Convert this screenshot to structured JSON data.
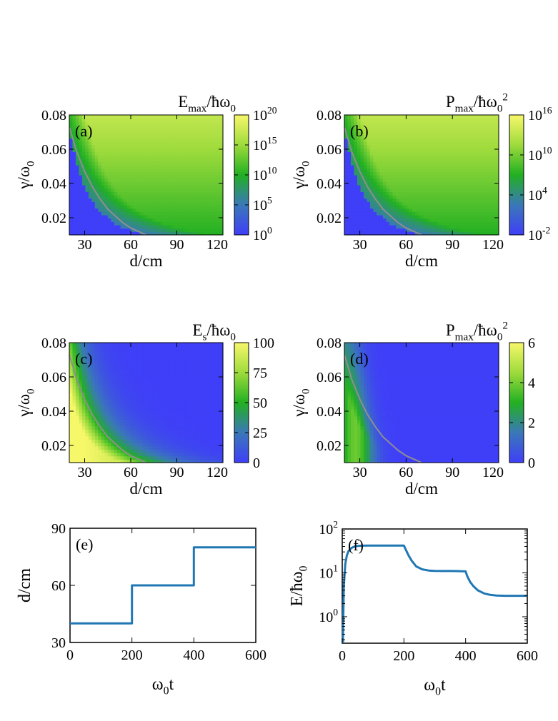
{
  "figure": {
    "panels": [
      {
        "id": "a",
        "label": "(a)"
      },
      {
        "id": "b",
        "label": "(b)"
      },
      {
        "id": "c",
        "label": "(c)"
      },
      {
        "id": "d",
        "label": "(d)"
      },
      {
        "id": "e",
        "label": "(e)"
      },
      {
        "id": "f",
        "label": "(f)"
      }
    ]
  },
  "colors": {
    "cmap_low": "#3f3ff8",
    "cmap_mid": "#22b022",
    "cmap_high": "#f7f76a",
    "contour": "#8f8f8f",
    "line": "#1f77b4",
    "axis": "#000000"
  },
  "chart_data": [
    {
      "id": "a",
      "type": "heatmap",
      "label": "(a)",
      "xlabel": "d/cm",
      "ylabel": "γ/ω0",
      "colorbar_title": "Emax/ħω0",
      "xlim": [
        20,
        120
      ],
      "ylim": [
        0.01,
        0.08
      ],
      "xticks": [
        30,
        60,
        90,
        120
      ],
      "yticks": [
        0.02,
        0.04,
        0.06,
        0.08
      ],
      "xticklabels": [
        "30",
        "60",
        "90",
        "120"
      ],
      "yticklabels": [
        "0.02",
        "0.04",
        "0.06",
        "0.08"
      ],
      "colorbar": {
        "scale": "log",
        "range": [
          0,
          20
        ],
        "ticks": [
          0,
          5,
          10,
          15,
          20
        ],
        "ticklabels": [
          "10^0",
          "10^5",
          "10^10",
          "10^15",
          "10^20"
        ]
      },
      "contour": {
        "x": [
          20,
          25,
          30,
          35,
          40,
          45,
          50,
          55,
          60,
          65,
          70
        ],
        "y": [
          0.073,
          0.058,
          0.047,
          0.038,
          0.031,
          0.025,
          0.021,
          0.017,
          0.014,
          0.012,
          0.01
        ]
      },
      "kind": "grow"
    },
    {
      "id": "b",
      "type": "heatmap",
      "label": "(b)",
      "xlabel": "d/cm",
      "ylabel": "γ/ω0",
      "colorbar_title": "Pmax/ħω0^2",
      "xlim": [
        20,
        120
      ],
      "ylim": [
        0.01,
        0.08
      ],
      "xticks": [
        30,
        60,
        90,
        120
      ],
      "yticks": [
        0.02,
        0.04,
        0.06,
        0.08
      ],
      "xticklabels": [
        "30",
        "60",
        "90",
        "120"
      ],
      "yticklabels": [
        "0.02",
        "0.04",
        "0.06",
        "0.08"
      ],
      "colorbar": {
        "scale": "log",
        "range": [
          -2,
          16
        ],
        "ticks": [
          -2,
          4,
          10,
          16
        ],
        "ticklabels": [
          "10^-2",
          "10^4",
          "10^10",
          "10^16"
        ]
      },
      "contour": {
        "x": [
          20,
          25,
          30,
          35,
          40,
          45,
          50,
          55,
          60,
          65,
          70
        ],
        "y": [
          0.073,
          0.058,
          0.047,
          0.038,
          0.031,
          0.025,
          0.021,
          0.017,
          0.014,
          0.012,
          0.01
        ]
      },
      "kind": "grow"
    },
    {
      "id": "c",
      "type": "heatmap",
      "label": "(c)",
      "xlabel": "d/cm",
      "ylabel": "γ/ω0",
      "colorbar_title": "Es/ħω0",
      "xlim": [
        20,
        120
      ],
      "ylim": [
        0.01,
        0.08
      ],
      "xticks": [
        30,
        60,
        90,
        120
      ],
      "yticks": [
        0.02,
        0.04,
        0.06,
        0.08
      ],
      "xticklabels": [
        "30",
        "60",
        "90",
        "120"
      ],
      "yticklabels": [
        "0.02",
        "0.04",
        "0.06",
        "0.08"
      ],
      "colorbar": {
        "scale": "linear",
        "range": [
          0,
          100
        ],
        "ticks": [
          0,
          25,
          50,
          75,
          100
        ],
        "ticklabels": [
          "0",
          "25",
          "50",
          "75",
          "100"
        ]
      },
      "contour": {
        "x": [
          20,
          25,
          30,
          35,
          40,
          45,
          50,
          55,
          60,
          65,
          70
        ],
        "y": [
          0.073,
          0.058,
          0.047,
          0.038,
          0.031,
          0.025,
          0.021,
          0.017,
          0.014,
          0.012,
          0.01
        ]
      },
      "kind": "steady"
    },
    {
      "id": "d",
      "type": "heatmap",
      "label": "(d)",
      "xlabel": "d/cm",
      "ylabel": "γ/ω0",
      "colorbar_title": "Pmax/ħω0^2",
      "xlim": [
        20,
        120
      ],
      "ylim": [
        0.01,
        0.08
      ],
      "xticks": [
        30,
        60,
        90,
        120
      ],
      "yticks": [
        0.02,
        0.04,
        0.06,
        0.08
      ],
      "xticklabels": [
        "30",
        "60",
        "90",
        "120"
      ],
      "yticklabels": [
        "0.02",
        "0.04",
        "0.06",
        "0.08"
      ],
      "colorbar": {
        "scale": "linear",
        "range": [
          0,
          6
        ],
        "ticks": [
          0,
          2,
          4,
          6
        ],
        "ticklabels": [
          "0",
          "2",
          "4",
          "6"
        ]
      },
      "contour": {
        "x": [
          20,
          25,
          30,
          35,
          40,
          45,
          50,
          55,
          60,
          65,
          70
        ],
        "y": [
          0.073,
          0.058,
          0.047,
          0.038,
          0.031,
          0.025,
          0.021,
          0.017,
          0.014,
          0.012,
          0.01
        ]
      },
      "kind": "peak"
    },
    {
      "id": "e",
      "type": "line",
      "label": "(e)",
      "xlabel": "ω0t",
      "ylabel": "d/cm",
      "xlim": [
        0,
        600
      ],
      "ylim": [
        30,
        90
      ],
      "xticks": [
        0,
        200,
        400,
        600
      ],
      "yticks": [
        30,
        60,
        90
      ],
      "xticklabels": [
        "0",
        "200",
        "400",
        "600"
      ],
      "yticklabels": [
        "30",
        "60",
        "90"
      ],
      "series": [
        {
          "x": [
            0,
            200,
            200,
            400,
            400,
            600
          ],
          "y": [
            40,
            40,
            60,
            60,
            80,
            80
          ]
        }
      ]
    },
    {
      "id": "f",
      "type": "line",
      "label": "(f)",
      "xlabel": "ω0t",
      "ylabel": "E/ħω0",
      "yscale": "log",
      "xlim": [
        0,
        600
      ],
      "ylim": [
        0.25,
        100
      ],
      "xticks": [
        0,
        200,
        400,
        600
      ],
      "yticks": [
        1,
        10,
        100
      ],
      "xticklabels": [
        "0",
        "200",
        "400",
        "600"
      ],
      "yticklabels": [
        "10^0",
        "10^1",
        "10^2"
      ],
      "series": [
        {
          "x": [
            2,
            5,
            10,
            15,
            20,
            30,
            40,
            50,
            60,
            80,
            100,
            130,
            160,
            200,
            205,
            215,
            225,
            240,
            260,
            280,
            300,
            330,
            360,
            400,
            405,
            415,
            425,
            440,
            460,
            480,
            500,
            530,
            560,
            600
          ],
          "y": [
            0.25,
            5,
            16,
            25,
            31,
            37,
            40,
            41,
            41.5,
            42,
            42,
            42,
            42,
            42,
            35,
            25,
            19,
            14,
            12,
            11.3,
            11.1,
            11,
            11,
            10.8,
            8.5,
            6.2,
            5,
            4,
            3.4,
            3.15,
            3.05,
            3,
            3,
            3
          ]
        }
      ]
    }
  ]
}
